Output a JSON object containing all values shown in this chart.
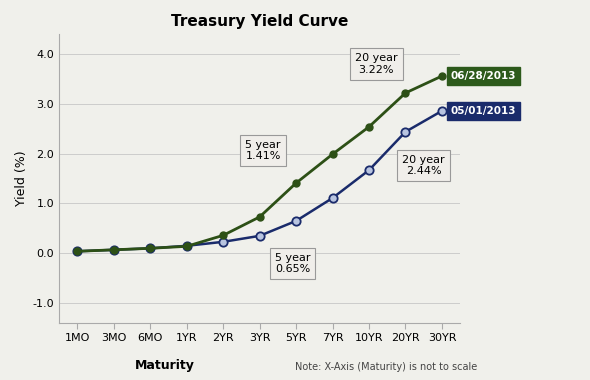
{
  "title": "Treasury Yield Curve",
  "xlabel": "Maturity",
  "xlabel_note": "Note: X-Axis (Maturity) is not to scale",
  "ylabel": "Yield (%)",
  "categories": [
    "1MO",
    "3MO",
    "6MO",
    "1YR",
    "2YR",
    "3YR",
    "5YR",
    "7YR",
    "10YR",
    "20YR",
    "30YR"
  ],
  "series1_label": "06/28/2013",
  "series1_color": "#2d5016",
  "series1_bg": "#2d5a1b",
  "series1_text_color": "#ffffff",
  "series1_values": [
    0.04,
    0.07,
    0.1,
    0.14,
    0.36,
    0.73,
    1.41,
    1.99,
    2.54,
    3.22,
    3.56
  ],
  "series2_label": "05/01/2013",
  "series2_color": "#1a2b6b",
  "series2_bg": "#1a2b6b",
  "series2_text_color": "#ffffff",
  "series2_values": [
    0.04,
    0.07,
    0.1,
    0.15,
    0.23,
    0.35,
    0.65,
    1.11,
    1.67,
    2.44,
    2.86
  ],
  "ylim": [
    -1.4,
    4.4
  ],
  "yticks": [
    -1.0,
    0.0,
    1.0,
    2.0,
    3.0,
    4.0
  ],
  "annotation_box_facecolor": "#f0eeea",
  "annotation_box_edgecolor": "#999999",
  "bg_color": "#f0f0eb",
  "grid_color": "#cccccc",
  "marker_size1": 5,
  "marker_size2": 6
}
